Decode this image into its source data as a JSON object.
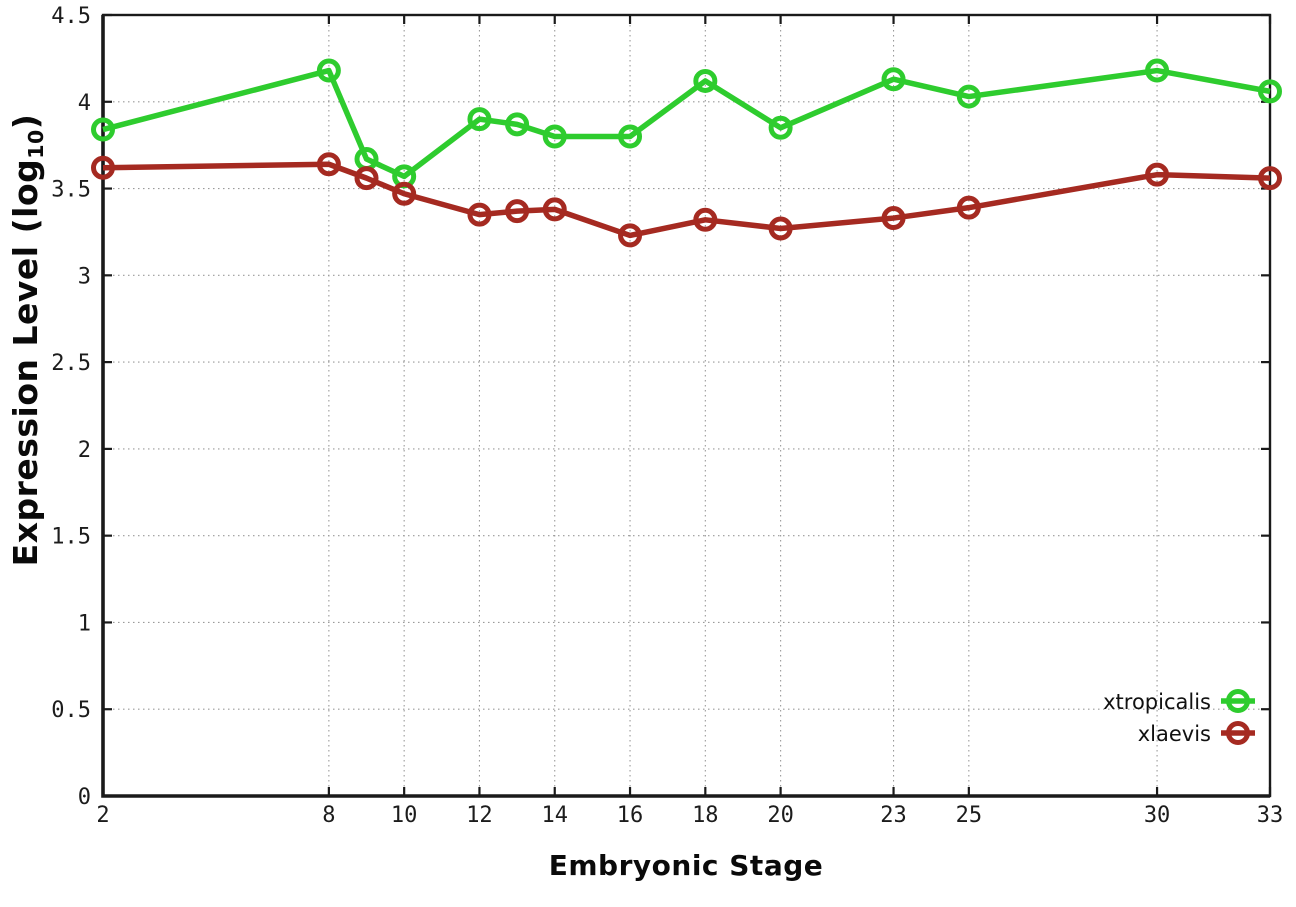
{
  "axes": {
    "x_label": "Embryonic Stage",
    "y_label_main": "Expression Level (log",
    "y_label_sub": "10",
    "y_label_close": ")"
  },
  "colors": {
    "xtropicalis": "#2ECC2E",
    "xlaevis": "#A52A21",
    "border": "#1a1a1a",
    "grid": "#9a9a9a",
    "background": "#ffffff"
  },
  "chart_data": {
    "type": "line",
    "title": "",
    "xlabel": "Embryonic Stage",
    "ylabel": "Expression Level (log10)",
    "xlim": [
      2,
      33
    ],
    "ylim": [
      0,
      4.5
    ],
    "grid": true,
    "legend_position": "bottom-right",
    "x_ticks": [
      2,
      8,
      10,
      12,
      14,
      16,
      18,
      20,
      23,
      25,
      30,
      33
    ],
    "x_tick_labels": [
      "2",
      "8",
      "10",
      "12",
      "14",
      "16",
      "18",
      "20",
      "23",
      "25",
      "30",
      "33"
    ],
    "y_ticks": [
      0,
      0.5,
      1,
      1.5,
      2,
      2.5,
      3,
      3.5,
      4,
      4.5
    ],
    "y_tick_labels": [
      "0",
      "0.5",
      "1",
      "1.5",
      "2",
      "2.5",
      "3",
      "3.5",
      "4",
      "4.5"
    ],
    "x": [
      2,
      8,
      9,
      10,
      12,
      13,
      14,
      16,
      18,
      20,
      23,
      25,
      30,
      33
    ],
    "series": [
      {
        "name": "xtropicalis",
        "color": "#2ECC2E",
        "marker": "open-circle",
        "values": [
          3.84,
          4.18,
          3.67,
          3.57,
          3.9,
          3.87,
          3.8,
          3.8,
          4.12,
          3.85,
          4.13,
          4.03,
          4.18,
          4.06
        ]
      },
      {
        "name": "xlaevis",
        "color": "#A52A21",
        "marker": "open-circle",
        "values": [
          3.62,
          3.64,
          3.56,
          3.47,
          3.35,
          3.37,
          3.38,
          3.23,
          3.32,
          3.27,
          3.33,
          3.39,
          3.58,
          3.56
        ]
      }
    ]
  }
}
